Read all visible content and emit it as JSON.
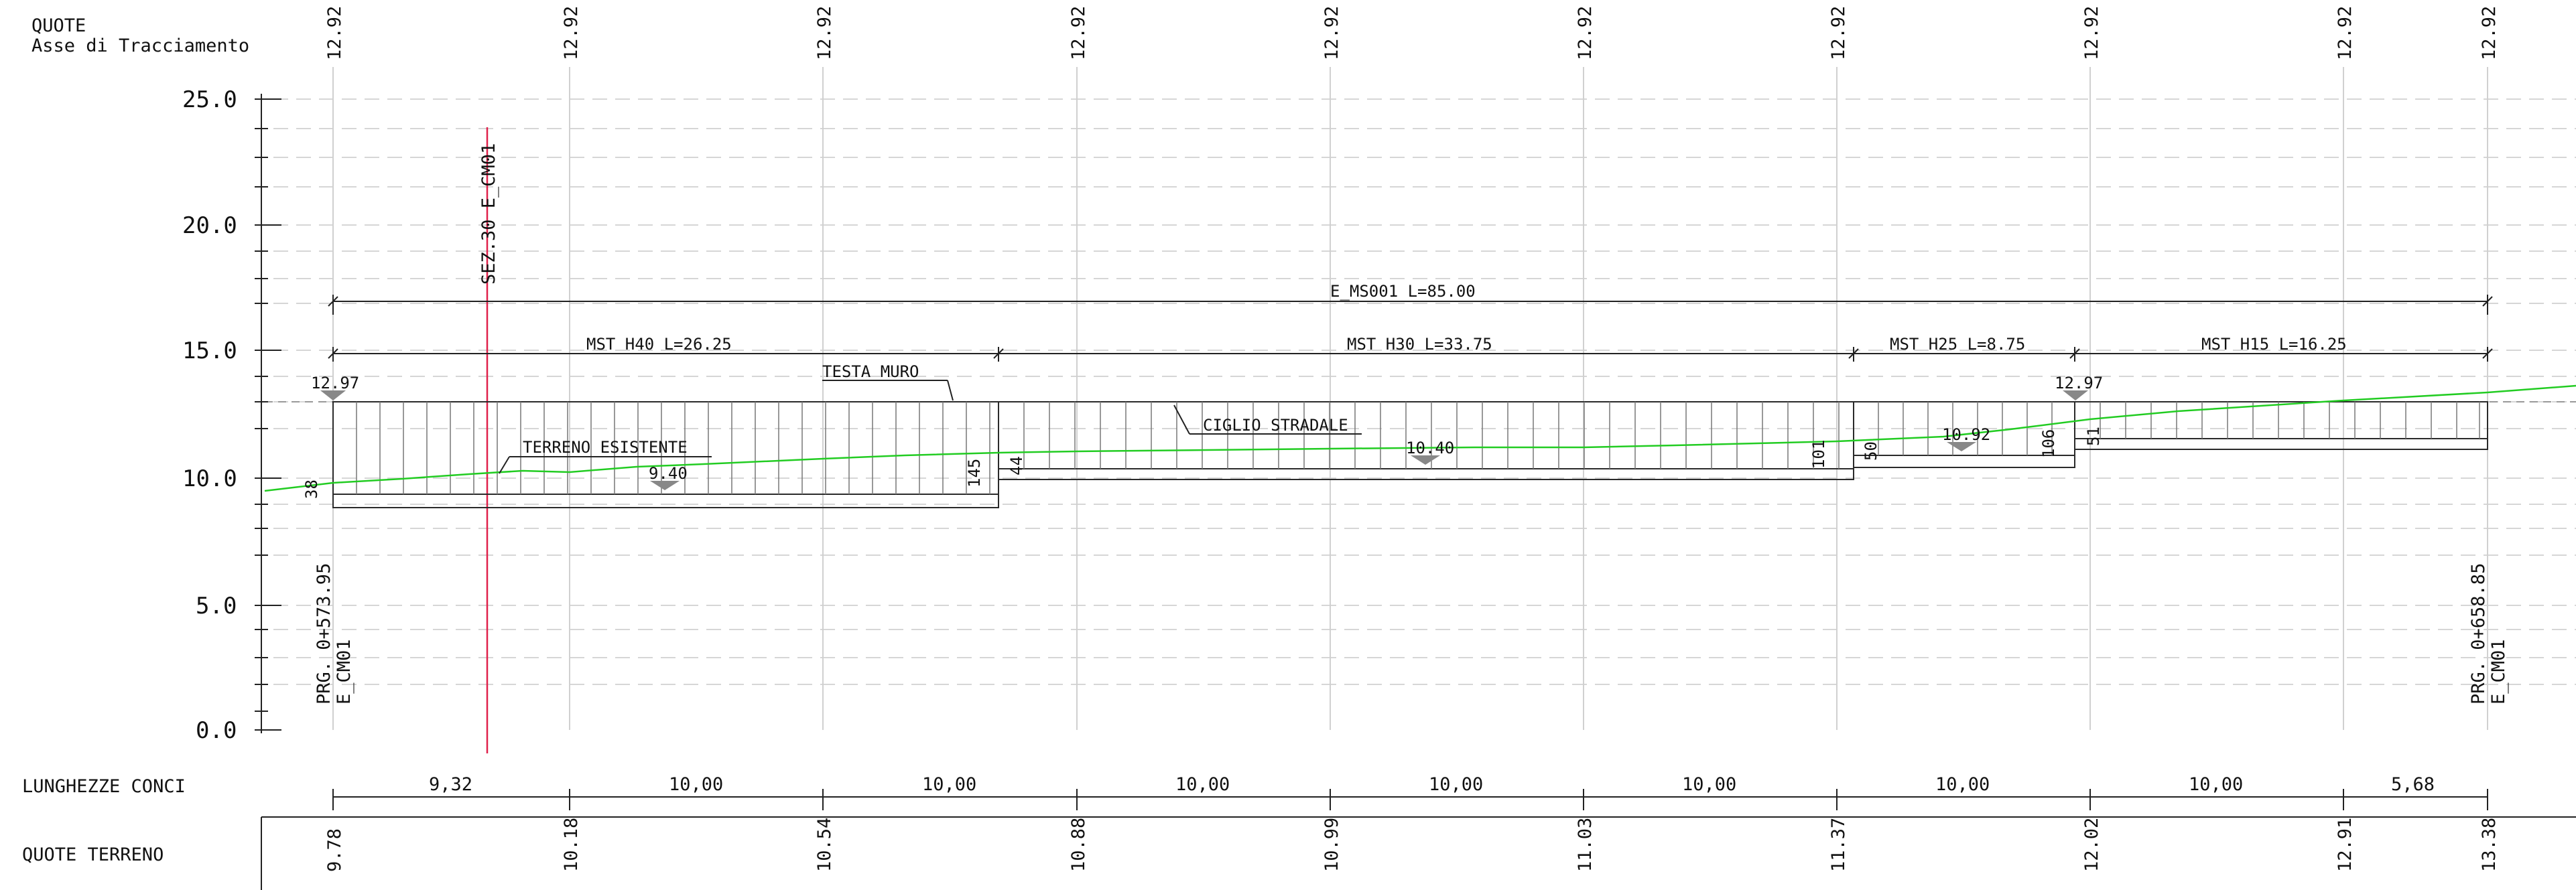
{
  "header": {
    "quote": "QUOTE",
    "asse": "Asse di Tracciamento"
  },
  "y_axis_labels": [
    "25.0",
    "20.0",
    "15.0",
    "10.0",
    "5.0",
    "0.0"
  ],
  "top_elevations": [
    "12.92",
    "12.92",
    "12.92",
    "12.92",
    "12.92",
    "12.92",
    "12.92",
    "12.92",
    "12.92",
    "12.92"
  ],
  "section_marker": "SEZ.30  E_CM01",
  "overall_dimension": "E_MS001  L=85.00",
  "segments": [
    {
      "label": "MST  H40  L=26.25"
    },
    {
      "label": "MST  H30  L=33.75"
    },
    {
      "label": "MST  H25  L=8.75"
    },
    {
      "label": "MST  H15  L=16.25"
    }
  ],
  "annotations": {
    "testa_muro": "TESTA  MURO",
    "ciglio": "CIGLIO  STRADALE",
    "terreno": "TERRENO  ESISTENTE",
    "elev_left": "12.97",
    "elev_right": "12.97",
    "base_1": "9.40",
    "base_2": "10.40",
    "base_3": "10.92",
    "h_left": "38",
    "h_1": "145",
    "h_2": "44",
    "h_3": "101",
    "h_4": "50",
    "h_5": "106",
    "h_6": "51"
  },
  "chainage": {
    "start": "PRG. 0+573.95",
    "start_code": "E_CM01",
    "end": "PRG. 0+658.85",
    "end_code": "E_CM01"
  },
  "lunghezze": {
    "label": "LUNGHEZZE  CONCI",
    "values": [
      "9,32",
      "10,00",
      "10,00",
      "10,00",
      "10,00",
      "10,00",
      "10,00",
      "10,00",
      "5,68"
    ]
  },
  "quote_terreno": {
    "label": "QUOTE  TERRENO",
    "values": [
      "9.78",
      "10.18",
      "10.54",
      "10.88",
      "10.99",
      "11.03",
      "11.37",
      "12.02",
      "12.91",
      "13.38"
    ]
  },
  "colors": {
    "ground_line": "#22cc22",
    "section_line": "#e0204a",
    "structure": "#2a2a2a"
  }
}
